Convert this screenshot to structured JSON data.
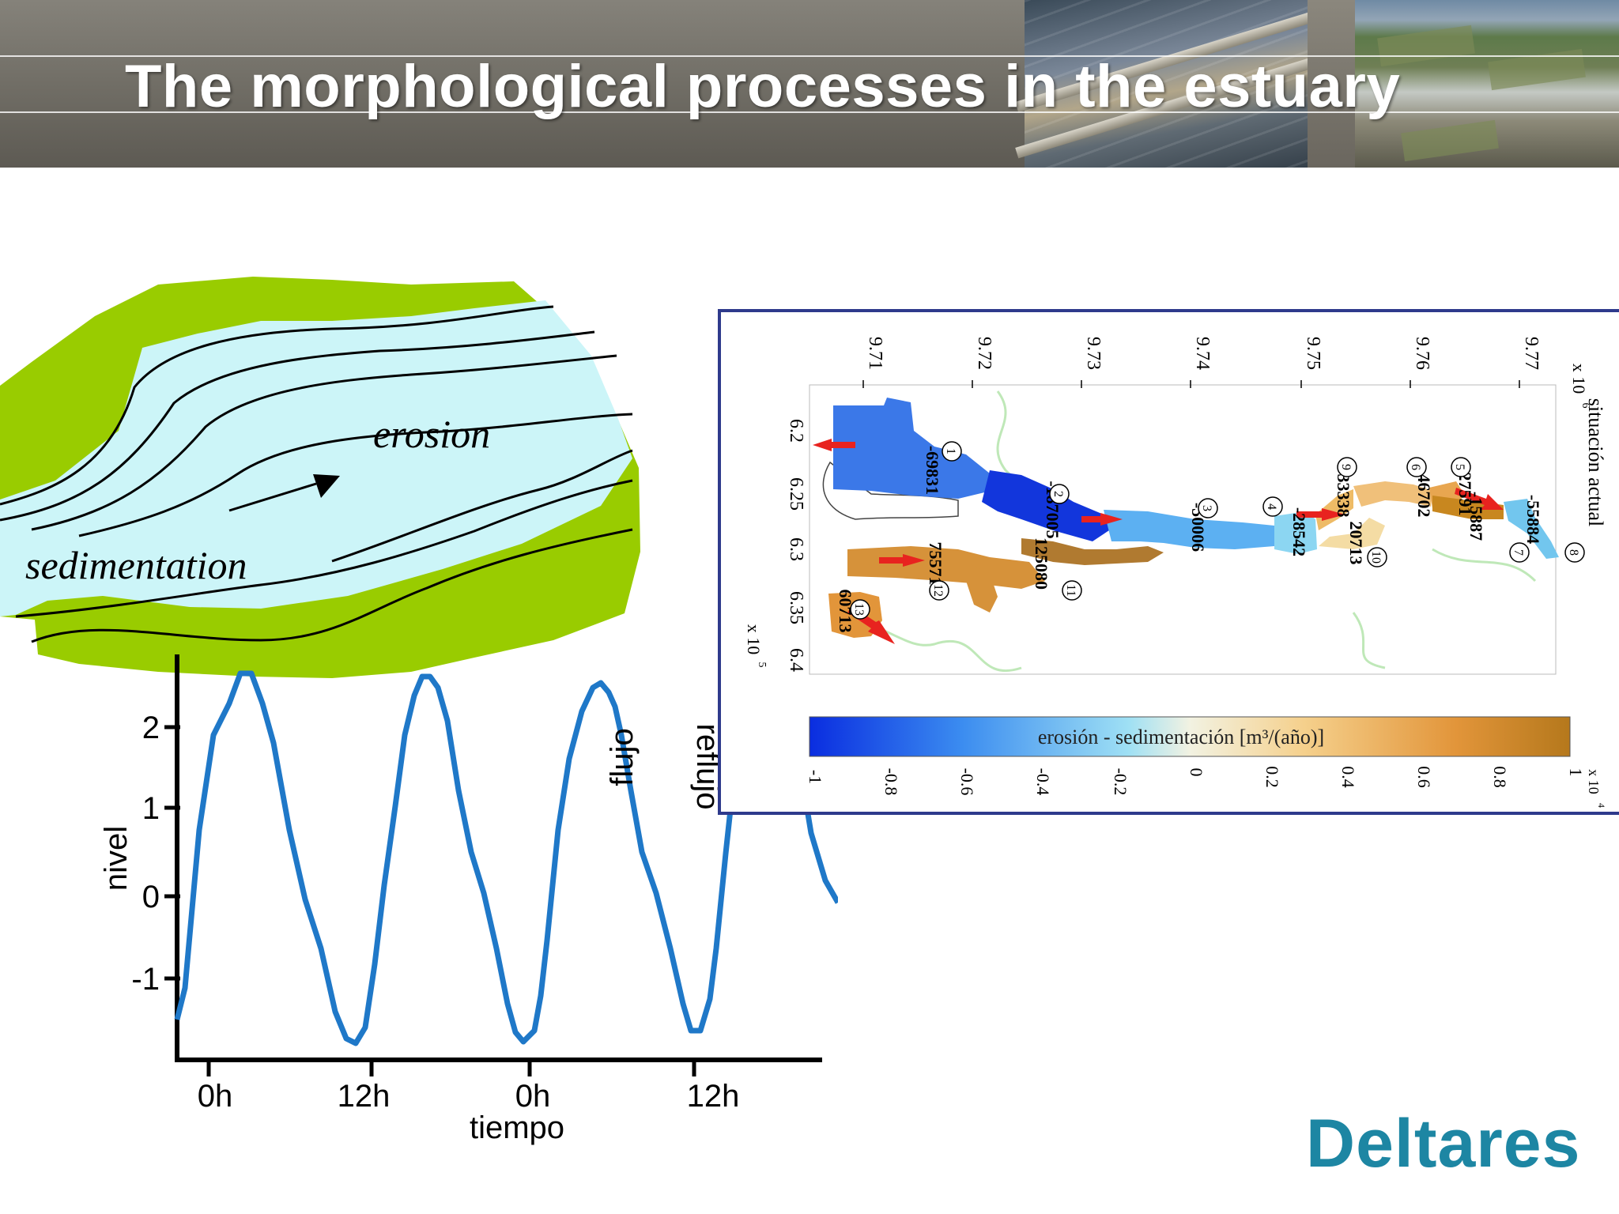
{
  "slide": {
    "title": "The morphological processes in the estuary",
    "logo_text": "Deltares"
  },
  "colors": {
    "banner": "#6f6c64",
    "bank_green": "#99cc00",
    "water": "#ccf5f8",
    "tide_curve": "#1f78c8",
    "inset_border": "#2e3a8c",
    "logo": "#1d86a3"
  },
  "river_diagram": {
    "erosion_label": "erosion",
    "sedimentation_label": "sedimentation"
  },
  "tide_chart": {
    "ylabel": "nivel",
    "xlabel": "tiempo",
    "yticks": [
      "2",
      "1",
      "0",
      "-1"
    ],
    "xticks": [
      "0h",
      "12h",
      "0h",
      "12h"
    ],
    "annotations": [
      "flujo",
      "reflujo"
    ]
  },
  "inset_figure": {
    "heading": "situación actual",
    "axis_multiplier_x": "x 10",
    "axis_multiplier_x_exp": "6",
    "axis_multiplier_y": "x 10",
    "axis_multiplier_y_exp": "5",
    "axis_ticks_top": [
      "9.71",
      "9.72",
      "9.73",
      "9.74",
      "9.75",
      "9.76",
      "9.77"
    ],
    "axis_ticks_side": [
      "6.2",
      "6.25",
      "6.3",
      "6.35",
      "6.4"
    ],
    "colorbar_label": "erosión - sedimentación [m³/(año)]",
    "colorbar_ticks": [
      "-1",
      "-0.8",
      "-0.6",
      "-0.4",
      "-0.2",
      "0",
      "0.2",
      "0.4",
      "0.6",
      "0.8",
      "1"
    ],
    "colorbar_multiplier": "x 10",
    "colorbar_multiplier_exp": "4",
    "segments": [
      {
        "id": "1",
        "value": "-69831"
      },
      {
        "id": "2",
        "value": "-187005"
      },
      {
        "id": "3",
        "value": "-50006"
      },
      {
        "id": "4",
        "value": "-28542"
      },
      {
        "id": "5",
        "value": "27591"
      },
      {
        "id": "6",
        "value": "46702"
      },
      {
        "id": "7",
        "value": "-15887"
      },
      {
        "id": "8",
        "value": "-55884"
      },
      {
        "id": "9",
        "value": "33338"
      },
      {
        "id": "10",
        "value": "20713"
      },
      {
        "id": "11",
        "value": "125080"
      },
      {
        "id": "12",
        "value": "75571"
      },
      {
        "id": "13",
        "value": "60713"
      }
    ]
  }
}
